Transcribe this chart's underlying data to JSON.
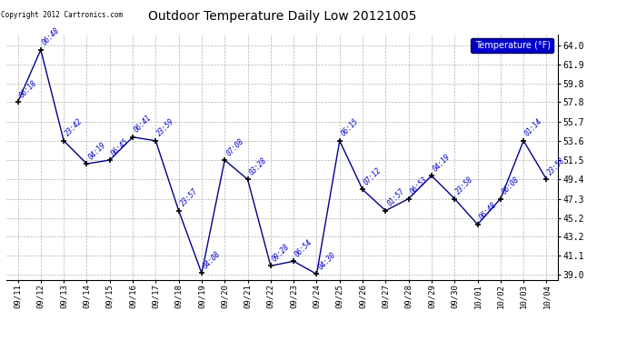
{
  "title": "Outdoor Temperature Daily Low 20121005",
  "legend_label": "Temperature (°F)",
  "copyright": "Copyright 2012 Cartronics.com",
  "x_labels": [
    "09/11",
    "09/12",
    "09/13",
    "09/14",
    "09/15",
    "09/16",
    "09/17",
    "09/18",
    "09/19",
    "09/20",
    "09/21",
    "09/22",
    "09/23",
    "09/24",
    "09/25",
    "09/26",
    "09/27",
    "09/28",
    "09/29",
    "09/30",
    "10/01",
    "10/02",
    "10/03",
    "10/04"
  ],
  "y_values": [
    57.8,
    63.5,
    53.6,
    51.1,
    51.5,
    54.0,
    53.6,
    46.0,
    39.2,
    51.5,
    49.4,
    40.0,
    40.5,
    39.1,
    53.6,
    48.3,
    46.0,
    47.3,
    49.8,
    47.3,
    44.5,
    47.3,
    53.6,
    49.4
  ],
  "point_labels": [
    "06:18",
    "06:48",
    "23:42",
    "04:19",
    "06:45",
    "06:41",
    "23:59",
    "23:57",
    "04:08",
    "07:08",
    "03:28",
    "09:28",
    "06:54",
    "04:30",
    "06:15",
    "07:12",
    "01:57",
    "06:53",
    "04:19",
    "23:58",
    "06:48",
    "06:08",
    "01:14",
    "23:58"
  ],
  "y_ticks": [
    39.0,
    41.1,
    43.2,
    45.2,
    47.3,
    49.4,
    51.5,
    53.6,
    55.7,
    57.8,
    59.8,
    61.9,
    64.0
  ],
  "line_color": "#00008B",
  "label_color": "#0000CD",
  "bg_color": "#ffffff",
  "grid_color": "#AAAAAA",
  "title_color": "#000000",
  "ylim": [
    38.5,
    65.2
  ]
}
